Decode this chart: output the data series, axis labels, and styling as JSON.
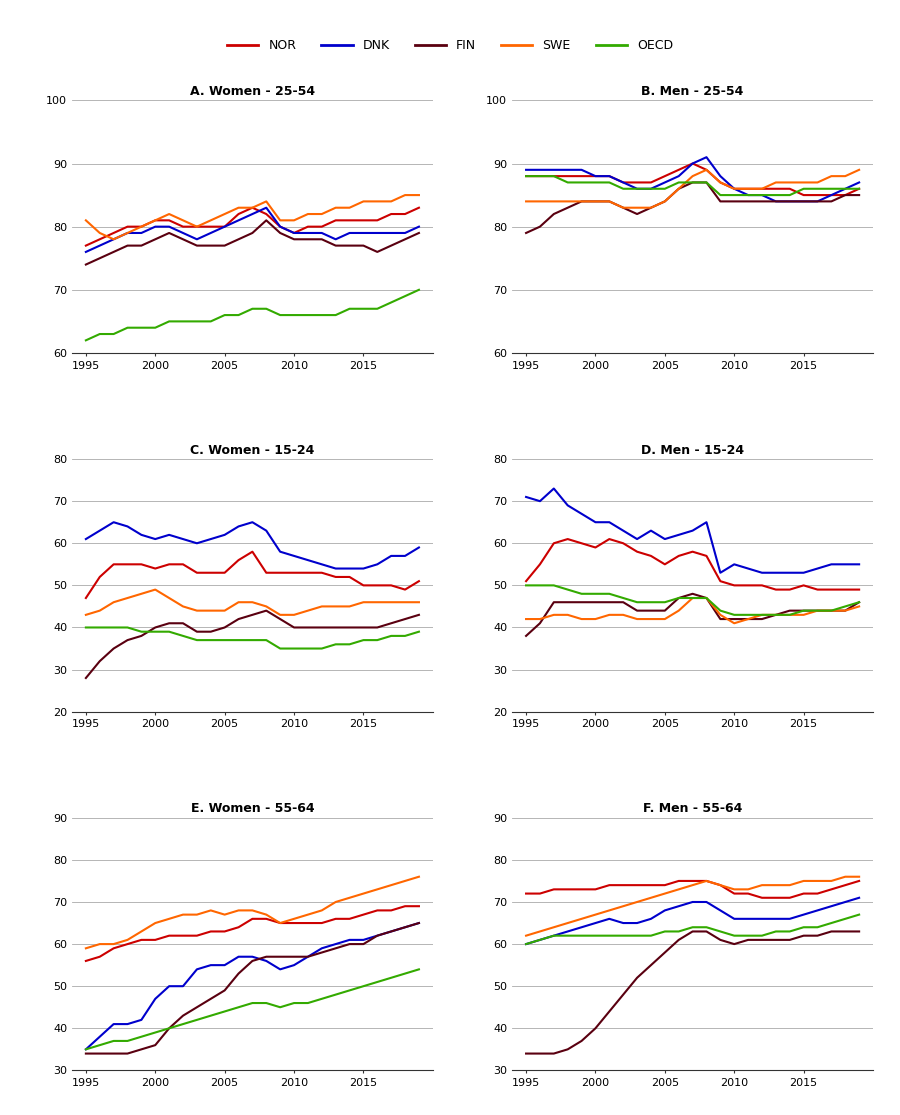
{
  "years": [
    1995,
    1996,
    1997,
    1998,
    1999,
    2000,
    2001,
    2002,
    2003,
    2004,
    2005,
    2006,
    2007,
    2008,
    2009,
    2010,
    2011,
    2012,
    2013,
    2014,
    2015,
    2016,
    2017,
    2018,
    2019
  ],
  "colors": {
    "NOR": "#cc0000",
    "DNK": "#0000cc",
    "FIN": "#5a0010",
    "SWE": "#ff6600",
    "OECD": "#33aa00"
  },
  "panels": {
    "A": {
      "title": "A. Women - 25-54",
      "ylim": [
        60,
        100
      ],
      "yticks": [
        60,
        70,
        80,
        90,
        100
      ],
      "NOR": [
        77,
        78,
        79,
        80,
        80,
        81,
        81,
        80,
        80,
        80,
        80,
        82,
        83,
        82,
        80,
        79,
        80,
        80,
        81,
        81,
        81,
        81,
        82,
        82,
        83
      ],
      "DNK": [
        76,
        77,
        78,
        79,
        79,
        80,
        80,
        79,
        78,
        79,
        80,
        81,
        82,
        83,
        80,
        79,
        79,
        79,
        78,
        79,
        79,
        79,
        79,
        79,
        80
      ],
      "FIN": [
        74,
        75,
        76,
        77,
        77,
        78,
        79,
        78,
        77,
        77,
        77,
        78,
        79,
        81,
        79,
        78,
        78,
        78,
        77,
        77,
        77,
        76,
        77,
        78,
        79
      ],
      "SWE": [
        81,
        79,
        78,
        79,
        80,
        81,
        82,
        81,
        80,
        81,
        82,
        83,
        83,
        84,
        81,
        81,
        82,
        82,
        83,
        83,
        84,
        84,
        84,
        85,
        85
      ],
      "OECD": [
        62,
        63,
        63,
        64,
        64,
        64,
        65,
        65,
        65,
        65,
        66,
        66,
        67,
        67,
        66,
        66,
        66,
        66,
        66,
        67,
        67,
        67,
        68,
        69,
        70
      ]
    },
    "B": {
      "title": "B. Men - 25-54",
      "ylim": [
        60,
        100
      ],
      "yticks": [
        60,
        70,
        80,
        90,
        100
      ],
      "NOR": [
        88,
        88,
        88,
        88,
        88,
        88,
        88,
        87,
        87,
        87,
        88,
        89,
        90,
        89,
        87,
        86,
        86,
        86,
        86,
        86,
        85,
        85,
        85,
        85,
        86
      ],
      "DNK": [
        89,
        89,
        89,
        89,
        89,
        88,
        88,
        87,
        86,
        86,
        87,
        88,
        90,
        91,
        88,
        86,
        85,
        85,
        84,
        84,
        84,
        84,
        85,
        86,
        87
      ],
      "FIN": [
        79,
        80,
        82,
        83,
        84,
        84,
        84,
        83,
        82,
        83,
        84,
        86,
        87,
        87,
        84,
        84,
        84,
        84,
        84,
        84,
        84,
        84,
        84,
        85,
        85
      ],
      "SWE": [
        84,
        84,
        84,
        84,
        84,
        84,
        84,
        83,
        83,
        83,
        84,
        86,
        88,
        89,
        87,
        86,
        86,
        86,
        87,
        87,
        87,
        87,
        88,
        88,
        89
      ],
      "OECD": [
        88,
        88,
        88,
        87,
        87,
        87,
        87,
        86,
        86,
        86,
        86,
        87,
        87,
        87,
        85,
        85,
        85,
        85,
        85,
        85,
        86,
        86,
        86,
        86,
        86
      ]
    },
    "C": {
      "title": "C. Women - 15-24",
      "ylim": [
        20,
        80
      ],
      "yticks": [
        20,
        30,
        40,
        50,
        60,
        70,
        80
      ],
      "NOR": [
        47,
        52,
        55,
        55,
        55,
        54,
        55,
        55,
        53,
        53,
        53,
        56,
        58,
        53,
        53,
        53,
        53,
        53,
        52,
        52,
        50,
        50,
        50,
        49,
        51
      ],
      "DNK": [
        61,
        63,
        65,
        64,
        62,
        61,
        62,
        61,
        60,
        61,
        62,
        64,
        65,
        63,
        58,
        57,
        56,
        55,
        54,
        54,
        54,
        55,
        57,
        57,
        59
      ],
      "FIN": [
        28,
        32,
        35,
        37,
        38,
        40,
        41,
        41,
        39,
        39,
        40,
        42,
        43,
        44,
        42,
        40,
        40,
        40,
        40,
        40,
        40,
        40,
        41,
        42,
        43
      ],
      "SWE": [
        43,
        44,
        46,
        47,
        48,
        49,
        47,
        45,
        44,
        44,
        44,
        46,
        46,
        45,
        43,
        43,
        44,
        45,
        45,
        45,
        46,
        46,
        46,
        46,
        46
      ],
      "OECD": [
        40,
        40,
        40,
        40,
        39,
        39,
        39,
        38,
        37,
        37,
        37,
        37,
        37,
        37,
        35,
        35,
        35,
        35,
        36,
        36,
        37,
        37,
        38,
        38,
        39
      ]
    },
    "D": {
      "title": "D. Men - 15-24",
      "ylim": [
        20,
        80
      ],
      "yticks": [
        20,
        30,
        40,
        50,
        60,
        70,
        80
      ],
      "NOR": [
        51,
        55,
        60,
        61,
        60,
        59,
        61,
        60,
        58,
        57,
        55,
        57,
        58,
        57,
        51,
        50,
        50,
        50,
        49,
        49,
        50,
        49,
        49,
        49,
        49
      ],
      "DNK": [
        71,
        70,
        73,
        69,
        67,
        65,
        65,
        63,
        61,
        63,
        61,
        62,
        63,
        65,
        53,
        55,
        54,
        53,
        53,
        53,
        53,
        54,
        55,
        55,
        55
      ],
      "FIN": [
        38,
        41,
        46,
        46,
        46,
        46,
        46,
        46,
        44,
        44,
        44,
        47,
        48,
        47,
        42,
        42,
        42,
        42,
        43,
        44,
        44,
        44,
        44,
        44,
        46
      ],
      "SWE": [
        42,
        42,
        43,
        43,
        42,
        42,
        43,
        43,
        42,
        42,
        42,
        44,
        47,
        47,
        43,
        41,
        42,
        43,
        43,
        43,
        43,
        44,
        44,
        44,
        45
      ],
      "OECD": [
        50,
        50,
        50,
        49,
        48,
        48,
        48,
        47,
        46,
        46,
        46,
        47,
        47,
        47,
        44,
        43,
        43,
        43,
        43,
        43,
        44,
        44,
        44,
        45,
        46
      ]
    },
    "E": {
      "title": "E. Women - 55-64",
      "ylim": [
        30,
        90
      ],
      "yticks": [
        30,
        40,
        50,
        60,
        70,
        80,
        90
      ],
      "NOR": [
        56,
        57,
        59,
        60,
        61,
        61,
        62,
        62,
        62,
        63,
        63,
        64,
        66,
        66,
        65,
        65,
        65,
        65,
        66,
        66,
        67,
        68,
        68,
        69,
        69
      ],
      "DNK": [
        35,
        38,
        41,
        41,
        42,
        47,
        50,
        50,
        54,
        55,
        55,
        57,
        57,
        56,
        54,
        55,
        57,
        59,
        60,
        61,
        61,
        62,
        63,
        64,
        65
      ],
      "FIN": [
        34,
        34,
        34,
        34,
        35,
        36,
        40,
        43,
        45,
        47,
        49,
        53,
        56,
        57,
        57,
        57,
        57,
        58,
        59,
        60,
        60,
        62,
        63,
        64,
        65
      ],
      "SWE": [
        59,
        60,
        60,
        61,
        63,
        65,
        66,
        67,
        67,
        68,
        67,
        68,
        68,
        67,
        65,
        66,
        67,
        68,
        70,
        71,
        72,
        73,
        74,
        75,
        76
      ],
      "OECD": [
        35,
        36,
        37,
        37,
        38,
        39,
        40,
        41,
        42,
        43,
        44,
        45,
        46,
        46,
        45,
        46,
        46,
        47,
        48,
        49,
        50,
        51,
        52,
        53,
        54
      ]
    },
    "F": {
      "title": "F. Men - 55-64",
      "ylim": [
        30,
        90
      ],
      "yticks": [
        30,
        40,
        50,
        60,
        70,
        80,
        90
      ],
      "NOR": [
        72,
        72,
        73,
        73,
        73,
        73,
        74,
        74,
        74,
        74,
        74,
        75,
        75,
        75,
        74,
        72,
        72,
        71,
        71,
        71,
        72,
        72,
        73,
        74,
        75
      ],
      "DNK": [
        60,
        61,
        62,
        63,
        64,
        65,
        66,
        65,
        65,
        66,
        68,
        69,
        70,
        70,
        68,
        66,
        66,
        66,
        66,
        66,
        67,
        68,
        69,
        70,
        71
      ],
      "FIN": [
        34,
        34,
        34,
        35,
        37,
        40,
        44,
        48,
        52,
        55,
        58,
        61,
        63,
        63,
        61,
        60,
        61,
        61,
        61,
        61,
        62,
        62,
        63,
        63,
        63
      ],
      "SWE": [
        62,
        63,
        64,
        65,
        66,
        67,
        68,
        69,
        70,
        71,
        72,
        73,
        74,
        75,
        74,
        73,
        73,
        74,
        74,
        74,
        75,
        75,
        75,
        76,
        76
      ],
      "OECD": [
        60,
        61,
        62,
        62,
        62,
        62,
        62,
        62,
        62,
        62,
        63,
        63,
        64,
        64,
        63,
        62,
        62,
        62,
        63,
        63,
        64,
        64,
        65,
        66,
        67
      ]
    }
  },
  "legend_entries": [
    "NOR",
    "DNK",
    "FIN",
    "SWE",
    "OECD"
  ]
}
